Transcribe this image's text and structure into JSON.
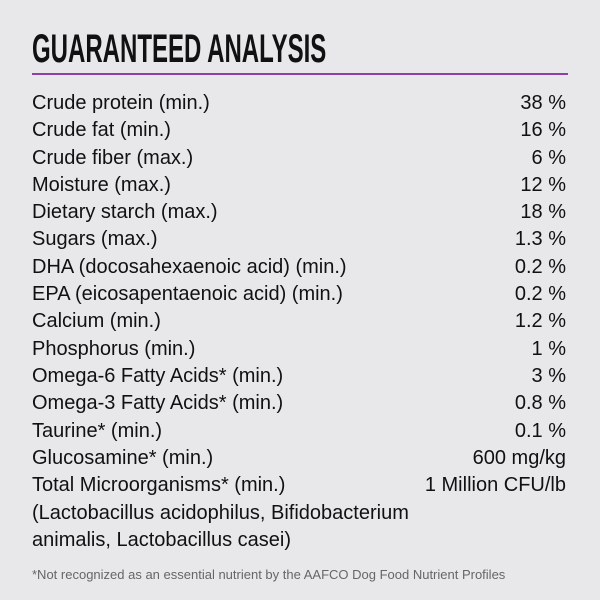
{
  "title": "GUARANTEED ANALYSIS",
  "accent_color": "#8e3fa8",
  "rows": [
    {
      "label": "Crude protein (min.)",
      "value": "38 %"
    },
    {
      "label": "Crude fat (min.)",
      "value": "16 %"
    },
    {
      "label": "Crude fiber (max.)",
      "value": "6 %"
    },
    {
      "label": "Moisture (max.)",
      "value": "12 %"
    },
    {
      "label": "Dietary starch (max.)",
      "value": "18 %"
    },
    {
      "label": "Sugars (max.)",
      "value": "1.3 %"
    },
    {
      "label": "DHA (docosahexaenoic acid) (min.)",
      "value": "0.2 %"
    },
    {
      "label": "EPA (eicosapentaenoic acid) (min.)",
      "value": "0.2 %"
    },
    {
      "label": "Calcium (min.)",
      "value": "1.2 %"
    },
    {
      "label": "Phosphorus (min.)",
      "value": "1 %"
    },
    {
      "label": "Omega-6 Fatty Acids* (min.)",
      "value": "3 %"
    },
    {
      "label": "Omega-3 Fatty Acids* (min.)",
      "value": "0.8 %"
    },
    {
      "label": "Taurine* (min.)",
      "value": "0.1 %"
    },
    {
      "label": "Glucosamine* (min.)",
      "value": "600 mg/kg"
    },
    {
      "label": "Total Microorganisms* (min.)",
      "value": "1 Million CFU/lb"
    }
  ],
  "microorganisms_note": "(Lactobacillus acidophilus, Bifidobacterium animalis, Lactobacillus casei)",
  "footnote": "*Not recognized as an essential nutrient by the AAFCO Dog Food Nutrient Profiles"
}
